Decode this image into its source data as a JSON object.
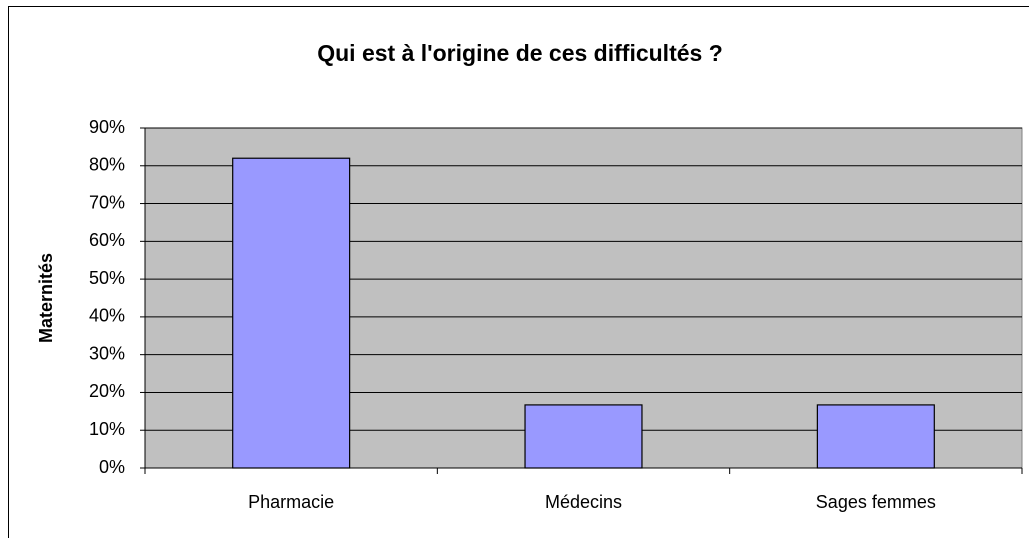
{
  "chart_data": {
    "type": "bar",
    "title": "Qui est à l'origine de ces difficultés ?",
    "y_label": "Maternités",
    "categories": [
      "Pharmacie",
      "Médecins",
      "Sages femmes"
    ],
    "values": [
      82,
      16.7,
      16.7
    ],
    "color": "#9999ff",
    "ylim": [
      0,
      90
    ],
    "yticks": [
      {
        "value": 0,
        "label": "0%"
      },
      {
        "value": 10,
        "label": "10%"
      },
      {
        "value": 20,
        "label": "20%"
      },
      {
        "value": 30,
        "label": "30%"
      },
      {
        "value": 40,
        "label": "40%"
      },
      {
        "value": 50,
        "label": "50%"
      },
      {
        "value": 60,
        "label": "60%"
      },
      {
        "value": 70,
        "label": "70%"
      },
      {
        "value": 80,
        "label": "80%"
      },
      {
        "value": 90,
        "label": "90%"
      }
    ],
    "grid": true
  }
}
